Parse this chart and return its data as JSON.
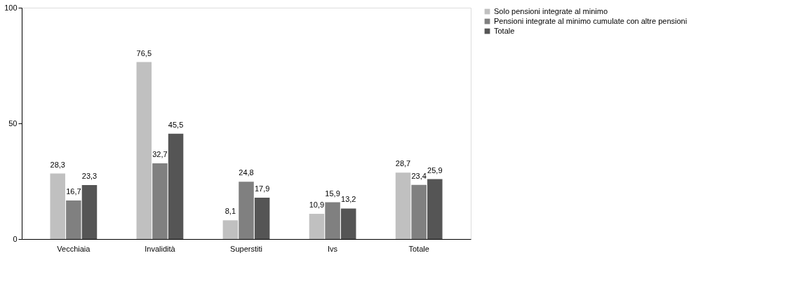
{
  "chart_data": {
    "type": "bar",
    "categories": [
      "Vecchiaia",
      "Invalidità",
      "Superstiti",
      "Ivs",
      "Totale"
    ],
    "series": [
      {
        "name": "Solo pensioni integrate al minimo",
        "color": "#c0c0c0",
        "values": [
          28.3,
          76.5,
          8.1,
          10.9,
          28.7
        ]
      },
      {
        "name": "Pensioni integrate al minimo cumulate con altre pensioni",
        "color": "#808080",
        "values": [
          16.7,
          32.7,
          24.8,
          15.9,
          23.4
        ]
      },
      {
        "name": "Totale",
        "color": "#555555",
        "values": [
          23.3,
          45.5,
          17.9,
          13.2,
          25.9
        ]
      }
    ],
    "value_labels": [
      [
        "28,3",
        "76,5",
        "8,1",
        "10,9",
        "28,7"
      ],
      [
        "16,7",
        "32,7",
        "24,8",
        "15,9",
        "23,4"
      ],
      [
        "23,3",
        "45,5",
        "17,9",
        "13,2",
        "25,9"
      ]
    ],
    "ylim": [
      0,
      100
    ],
    "yticks": [
      0,
      50,
      100
    ],
    "grid": false,
    "legend": "right"
  }
}
